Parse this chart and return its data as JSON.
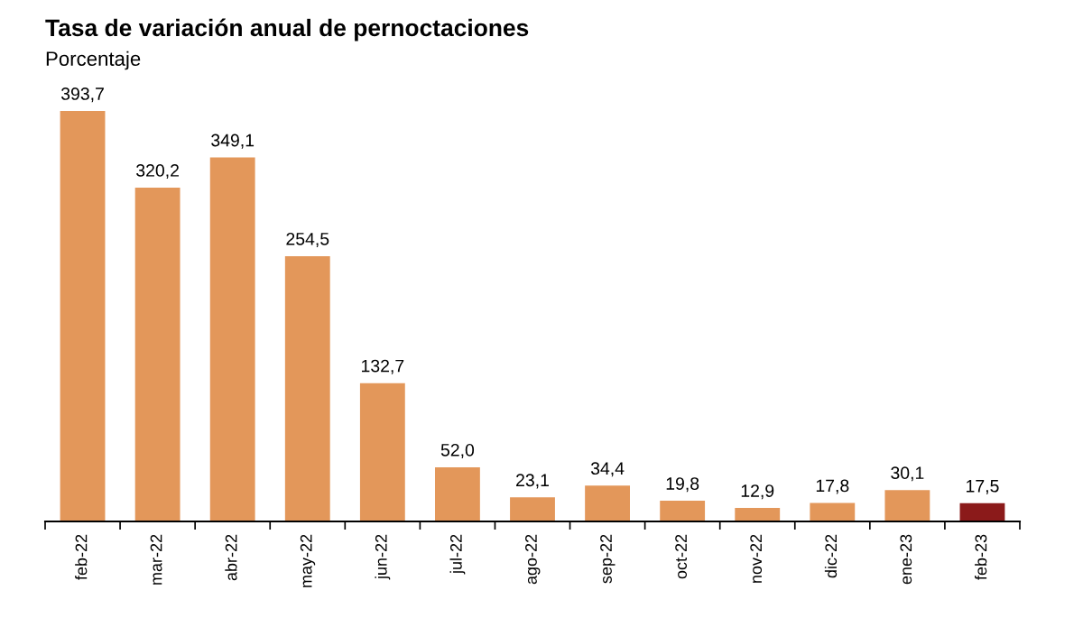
{
  "chart_data": {
    "type": "bar",
    "title": "Tasa de variación anual de pernoctaciones",
    "subtitle": "Porcentaje",
    "categories": [
      "feb-22",
      "mar-22",
      "abr-22",
      "may-22",
      "jun-22",
      "jul-22",
      "ago-22",
      "sep-22",
      "oct-22",
      "nov-22",
      "dic-22",
      "ene-23",
      "feb-23"
    ],
    "values": [
      393.7,
      320.2,
      349.1,
      254.5,
      132.7,
      52.0,
      23.1,
      34.4,
      19.8,
      12.9,
      17.8,
      30.1,
      17.5
    ],
    "colors": [
      "#e3975a",
      "#e3975a",
      "#e3975a",
      "#e3975a",
      "#e3975a",
      "#e3975a",
      "#e3975a",
      "#e3975a",
      "#e3975a",
      "#e3975a",
      "#e3975a",
      "#e3975a",
      "#8b1a1a"
    ],
    "value_labels": [
      "393,7",
      "320,2",
      "349,1",
      "254,5",
      "132,7",
      "52,0",
      "23,1",
      "34,4",
      "19,8",
      "12,9",
      "17,8",
      "30,1",
      "17,5"
    ],
    "grid": false,
    "legend": false
  }
}
